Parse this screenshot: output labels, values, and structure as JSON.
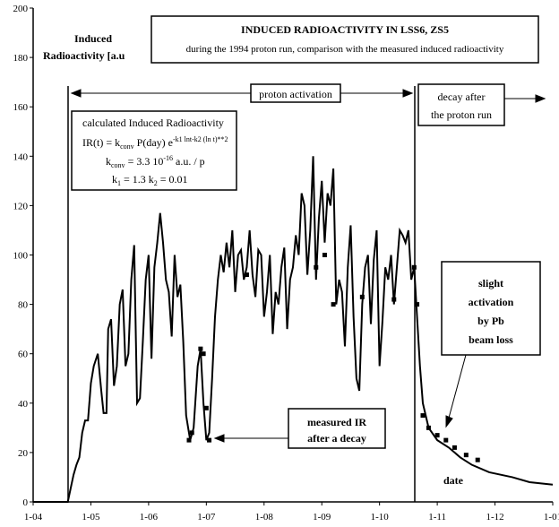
{
  "chart_data": {
    "type": "line",
    "title": "INDUCED RADIOACTIVITY IN LSS6, ZS5",
    "subtitle": "during the 1994 proton run, comparison with the measured induced radioactivity",
    "y_label": [
      "Induced",
      "Radioactivity  [a.u"
    ],
    "x_label": "date",
    "xlim": [
      4,
      13
    ],
    "ylim": [
      0,
      200
    ],
    "xticks": [
      {
        "value": 4,
        "label": "1-04"
      },
      {
        "value": 5,
        "label": "1-05"
      },
      {
        "value": 6,
        "label": "1-06"
      },
      {
        "value": 7,
        "label": "1-07"
      },
      {
        "value": 8,
        "label": "1-08"
      },
      {
        "value": 9,
        "label": "1-09"
      },
      {
        "value": 10,
        "label": "1-10"
      },
      {
        "value": 11,
        "label": "1-11"
      },
      {
        "value": 12,
        "label": "1-12"
      },
      {
        "value": 13,
        "label": "1-01"
      }
    ],
    "yticks": [
      0,
      20,
      40,
      60,
      80,
      100,
      120,
      140,
      160,
      180,
      200
    ],
    "series": [
      {
        "name": "calculated Induced Radioactivity",
        "color": "#000000",
        "x": [
          4.0,
          4.6,
          4.7,
          4.75,
          4.8,
          4.85,
          4.9,
          4.95,
          5.0,
          5.05,
          5.12,
          5.18,
          5.22,
          5.27,
          5.3,
          5.35,
          5.4,
          5.45,
          5.5,
          5.55,
          5.6,
          5.65,
          5.7,
          5.75,
          5.8,
          5.85,
          5.9,
          5.95,
          6.0,
          6.05,
          6.1,
          6.15,
          6.2,
          6.25,
          6.3,
          6.35,
          6.4,
          6.45,
          6.5,
          6.55,
          6.6,
          6.65,
          6.72,
          6.78,
          6.85,
          6.9,
          6.95,
          7.0,
          7.05,
          7.1,
          7.15,
          7.2,
          7.25,
          7.3,
          7.35,
          7.4,
          7.45,
          7.5,
          7.55,
          7.6,
          7.65,
          7.7,
          7.75,
          7.8,
          7.85,
          7.9,
          7.95,
          8.0,
          8.05,
          8.1,
          8.15,
          8.2,
          8.25,
          8.3,
          8.35,
          8.4,
          8.45,
          8.5,
          8.55,
          8.6,
          8.65,
          8.7,
          8.75,
          8.8,
          8.85,
          8.9,
          8.95,
          9.0,
          9.05,
          9.1,
          9.15,
          9.2,
          9.25,
          9.3,
          9.35,
          9.4,
          9.45,
          9.5,
          9.55,
          9.6,
          9.65,
          9.7,
          9.75,
          9.8,
          9.85,
          9.9,
          9.95,
          10.0,
          10.05,
          10.1,
          10.15,
          10.2,
          10.25,
          10.3,
          10.35,
          10.4,
          10.45,
          10.5,
          10.55,
          10.6,
          10.65,
          10.7,
          10.75,
          10.85,
          11.0,
          11.2,
          11.4,
          11.6,
          11.9,
          12.3,
          12.6,
          13.0
        ],
        "values": [
          0,
          0,
          11,
          15,
          18,
          28,
          33,
          33,
          48,
          55,
          60,
          45,
          36,
          36,
          70,
          74,
          47,
          55,
          80,
          86,
          55,
          60,
          90,
          104,
          40,
          42,
          65,
          90,
          100,
          58,
          95,
          105,
          117,
          105,
          90,
          85,
          67,
          100,
          83,
          88,
          65,
          35,
          25,
          30,
          55,
          62,
          40,
          25,
          28,
          50,
          75,
          90,
          100,
          93,
          105,
          95,
          110,
          85,
          100,
          102,
          90,
          95,
          110,
          92,
          83,
          102,
          100,
          75,
          85,
          100,
          68,
          85,
          80,
          95,
          103,
          70,
          90,
          95,
          108,
          100,
          125,
          120,
          92,
          110,
          140,
          90,
          115,
          130,
          105,
          125,
          120,
          135,
          80,
          90,
          85,
          63,
          95,
          112,
          75,
          50,
          45,
          80,
          95,
          100,
          72,
          98,
          110,
          55,
          73,
          95,
          90,
          100,
          80,
          95,
          110,
          108,
          105,
          110,
          90,
          95,
          75,
          55,
          40,
          30,
          25,
          22,
          18,
          15,
          12,
          10,
          8,
          7
        ]
      },
      {
        "name": "measured IR",
        "color": "#000000",
        "x": [
          6.7,
          6.75,
          6.9,
          6.95,
          7.0,
          7.05,
          7.7,
          8.9,
          9.05,
          9.2,
          9.7,
          10.25,
          10.6,
          10.65,
          10.75,
          10.85,
          11.0,
          11.15,
          11.3,
          11.5,
          11.7
        ],
        "values": [
          25,
          28,
          62,
          60,
          38,
          25,
          92,
          95,
          100,
          80,
          83,
          82,
          95,
          80,
          35,
          30,
          27,
          25,
          22,
          19,
          17
        ]
      }
    ],
    "annotations": {
      "proton_activation": "proton activation",
      "decay": [
        "decay after",
        "the proton run"
      ],
      "formula_title": "calculated  Induced Radioactivity",
      "formula": [
        "IR(t) = k",
        "conv",
        " P(day) e",
        "-k1 lnt-k2 (ln t)**2"
      ],
      "kconv": [
        "k",
        "conv",
        " = 3.3 10",
        "-16",
        " a.u. / p"
      ],
      "k1k2": [
        "k",
        "1",
        " = 1.3      k",
        "2",
        " = 0.01"
      ],
      "measured": [
        "measured IR",
        "after a decay"
      ],
      "pb": [
        "slight",
        "activation",
        "by Pb",
        "beam loss"
      ]
    }
  }
}
